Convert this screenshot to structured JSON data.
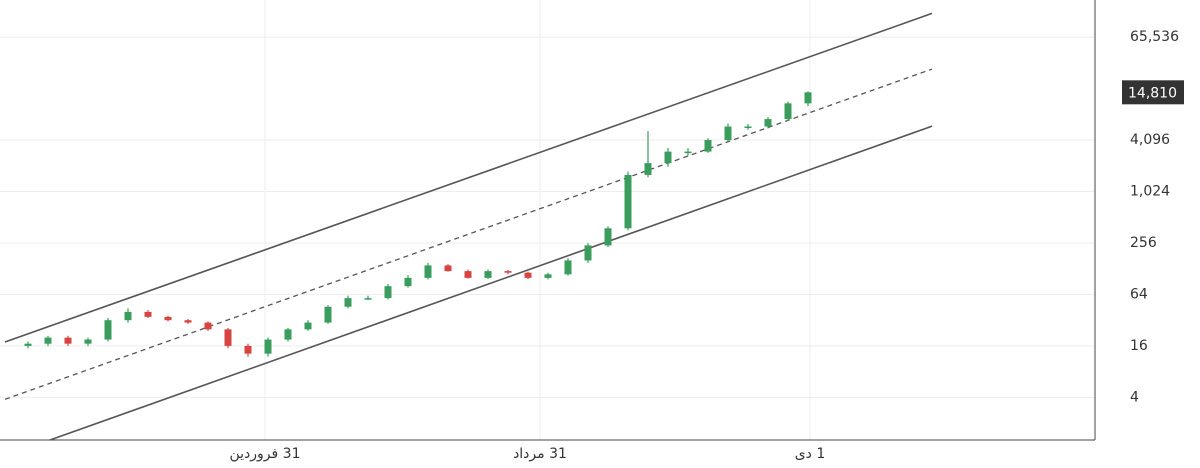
{
  "chart_data": {
    "type": "candlestick",
    "x": [
      0,
      1,
      2,
      3,
      4,
      5,
      6,
      7,
      8,
      9,
      10,
      11,
      12,
      13,
      14,
      15,
      16,
      17,
      18,
      19,
      20,
      21,
      22,
      23,
      24,
      25,
      26,
      27,
      28,
      29,
      30,
      31,
      32,
      33,
      34,
      35,
      36,
      37,
      38,
      39
    ],
    "open": [
      16,
      17,
      20,
      17,
      19,
      32,
      40,
      35,
      32,
      30,
      25,
      16,
      13,
      19,
      25,
      30,
      46,
      58,
      58,
      80,
      100,
      140,
      120,
      100,
      120,
      115,
      100,
      110,
      160,
      240,
      380,
      1600,
      2200,
      3000,
      3000,
      4100,
      5900,
      5900,
      7200,
      11000
    ],
    "high": [
      18,
      21,
      21,
      20,
      34,
      44,
      42,
      36,
      33,
      31,
      26,
      17,
      20,
      26,
      32,
      48,
      62,
      62,
      85,
      108,
      150,
      145,
      125,
      125,
      124,
      118,
      115,
      170,
      255,
      400,
      1750,
      5200,
      3300,
      3300,
      4300,
      6400,
      6300,
      7600,
      11500,
      15200
    ],
    "low": [
      15,
      16,
      16,
      16,
      18,
      30,
      34,
      31,
      29,
      24,
      15,
      12,
      12,
      18,
      24,
      29,
      44,
      55,
      56,
      77,
      96,
      118,
      98,
      97,
      110,
      97,
      96,
      106,
      150,
      230,
      360,
      1500,
      2000,
      2700,
      2900,
      3900,
      5400,
      5600,
      6900,
      10200
    ],
    "close": [
      17,
      20,
      17,
      19,
      32,
      40,
      35,
      32,
      30,
      25,
      16,
      13,
      19,
      25,
      30,
      46,
      58,
      58,
      80,
      100,
      140,
      120,
      100,
      120,
      115,
      100,
      110,
      160,
      240,
      380,
      1600,
      2200,
      3000,
      3000,
      4100,
      5900,
      5900,
      7200,
      11000,
      14810
    ],
    "up_color": "#3a9d5d",
    "down_color": "#d64541",
    "log_scale": true,
    "grid": true,
    "xlim": [
      -1.4,
      53.35
    ],
    "xticks": [
      {
        "value": 11.85,
        "label": "31 فروردین"
      },
      {
        "value": 25.6,
        "label": "31 مرداد"
      },
      {
        "value": 39.1,
        "label": "1 دی"
      }
    ],
    "ylim": [
      1.27,
      178000
    ],
    "yticks": [
      4,
      16,
      64,
      256,
      {
        "value": 1024,
        "label": "1,024"
      },
      {
        "value": 4096,
        "label": "4,096"
      },
      {
        "value": 65536,
        "label": "65,536"
      }
    ],
    "last_price": {
      "value": 14810,
      "label": "14,810"
    },
    "trendlines": [
      {
        "x": [
          -1.15,
          45.2
        ],
        "y": [
          17.8,
          124000
        ],
        "style": "solid"
      },
      {
        "x": [
          -1.15,
          45.2
        ],
        "y": [
          3.8,
          27700
        ],
        "style": "dashed"
      },
      {
        "x": [
          1.1,
          45.2
        ],
        "y": [
          1.27,
          5950
        ],
        "style": "solid"
      }
    ]
  }
}
